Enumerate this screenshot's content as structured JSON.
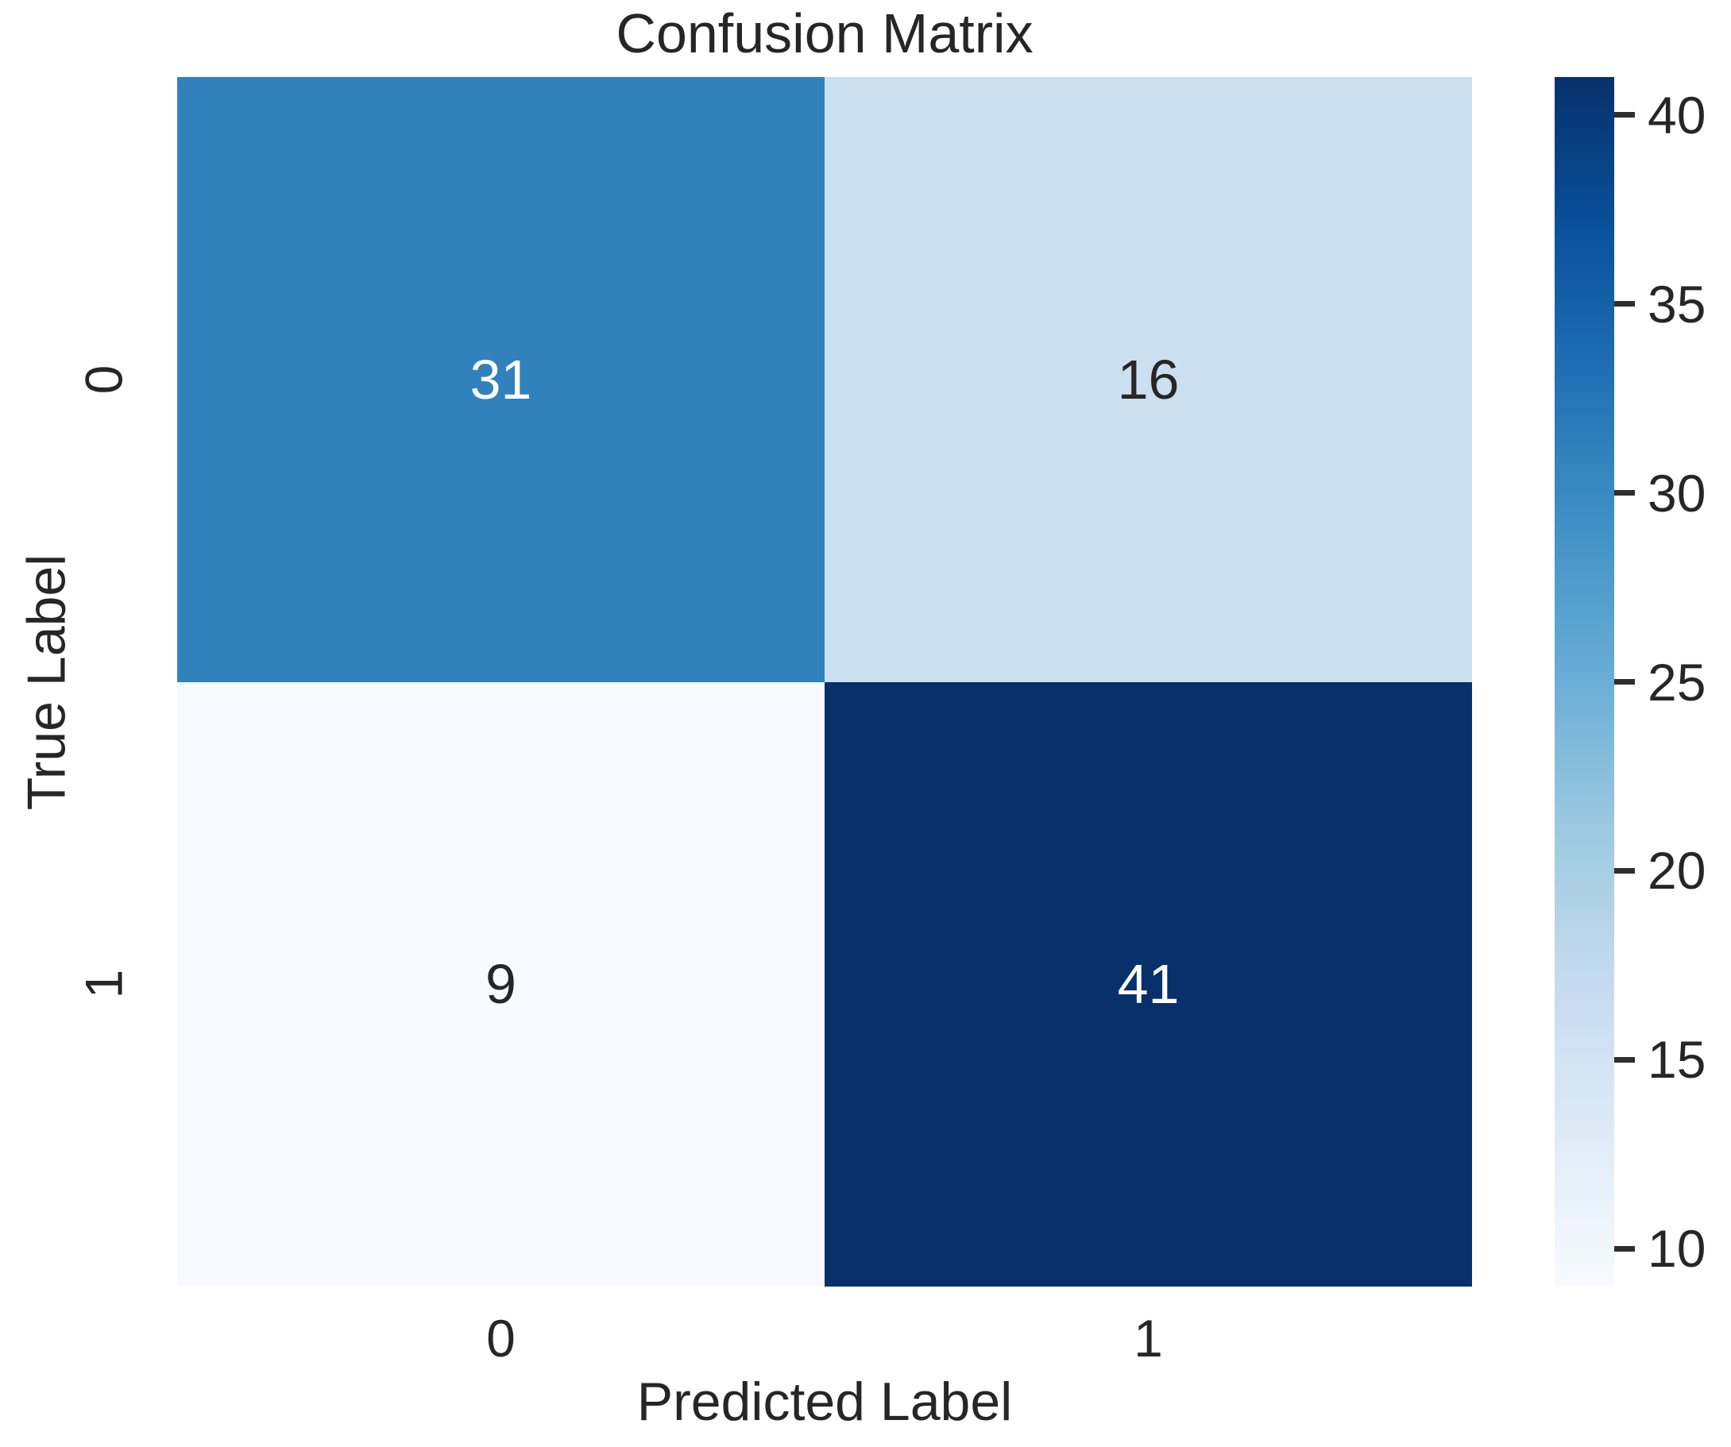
{
  "chart_data": {
    "type": "heatmap",
    "title": "Confusion Matrix",
    "xlabel": "Predicted Label",
    "ylabel": "True Label",
    "x_categories": [
      "0",
      "1"
    ],
    "y_categories": [
      "0",
      "1"
    ],
    "matrix": [
      [
        31,
        16
      ],
      [
        9,
        41
      ]
    ],
    "vmin": 9,
    "vmax": 41,
    "colormap_name": "Blues",
    "colorbar_position": "right",
    "grid": false,
    "cell_colors": [
      [
        "#3181bd",
        "#ccdff1"
      ],
      [
        "#f7fbff",
        "#08306b"
      ]
    ],
    "cell_text_colors": [
      [
        "#ffffff",
        "#262626"
      ],
      [
        "#262626",
        "#ffffff"
      ]
    ],
    "colorbar_ticks": [
      10,
      15,
      20,
      25,
      30,
      35,
      40
    ],
    "colorbar_gradient": [
      {
        "pos": 0.0,
        "color": "#f7fbff"
      },
      {
        "pos": 0.125,
        "color": "#deebf7"
      },
      {
        "pos": 0.25,
        "color": "#c6dbef"
      },
      {
        "pos": 0.375,
        "color": "#9ecae1"
      },
      {
        "pos": 0.5,
        "color": "#6baed6"
      },
      {
        "pos": 0.625,
        "color": "#4292c6"
      },
      {
        "pos": 0.75,
        "color": "#2171b5"
      },
      {
        "pos": 0.875,
        "color": "#08519c"
      },
      {
        "pos": 1.0,
        "color": "#08306b"
      }
    ],
    "text_color": "#262626",
    "background_color": "#ffffff"
  }
}
